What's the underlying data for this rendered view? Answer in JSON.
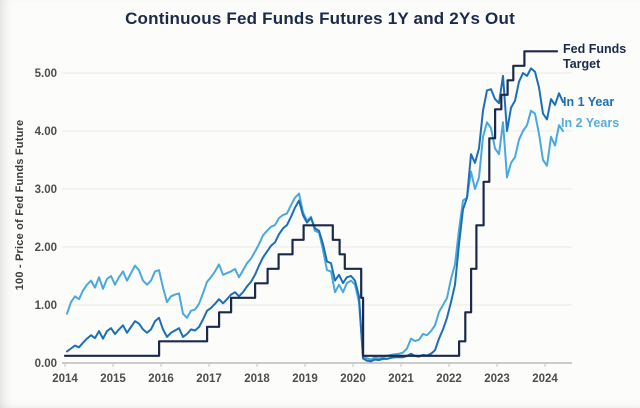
{
  "title": "Continuous Fed Funds Futures 1Y and 2Ys Out",
  "legend": {
    "target_label": "Fed Funds Target",
    "in_1_year_label": "In 1 Year",
    "in_2_years_label": "In 2 Years"
  },
  "colors": {
    "title_text": "#1b2a4a",
    "target_line": "#1b2a4a",
    "in_1_year_line": "#1d6fb5",
    "in_2_years_line": "#49a9dc",
    "gridline": "#eaeae6",
    "axis_line": "#9a9a9a",
    "tick_text": "#4d4d4d",
    "background": "#fcfcfa"
  },
  "chart_data": {
    "type": "line",
    "title": "Continuous Fed Funds Futures 1Y and 2Ys Out",
    "xlabel": "",
    "ylabel": "100 - Price of Fed Funds Future",
    "xlim": [
      2014,
      2024.6
    ],
    "ylim": [
      0,
      5.5
    ],
    "grid": "horizontal",
    "legend_position": "right",
    "x_ticks": [
      2014,
      2015,
      2016,
      2017,
      2018,
      2019,
      2020,
      2021,
      2022,
      2023,
      2024
    ],
    "y_ticks": [
      0,
      1,
      2,
      3,
      4,
      5
    ],
    "y_tick_labels": [
      "0.00",
      "1.00",
      "2.00",
      "3.00",
      "4.00",
      "5.00"
    ],
    "series": [
      {
        "name": "Fed Funds Target",
        "style": "step",
        "color": "#1b2a4a",
        "x_end": 2024.25,
        "points": [
          [
            2014.0,
            0.125
          ],
          [
            2015.96,
            0.375
          ],
          [
            2016.96,
            0.625
          ],
          [
            2017.21,
            0.875
          ],
          [
            2017.46,
            1.125
          ],
          [
            2017.96,
            1.375
          ],
          [
            2018.22,
            1.625
          ],
          [
            2018.45,
            1.875
          ],
          [
            2018.74,
            2.125
          ],
          [
            2018.97,
            2.375
          ],
          [
            2019.58,
            2.125
          ],
          [
            2019.72,
            1.875
          ],
          [
            2019.83,
            1.625
          ],
          [
            2020.17,
            1.125
          ],
          [
            2020.21,
            0.125
          ],
          [
            2022.21,
            0.375
          ],
          [
            2022.34,
            0.875
          ],
          [
            2022.46,
            1.625
          ],
          [
            2022.57,
            2.375
          ],
          [
            2022.72,
            3.125
          ],
          [
            2022.84,
            3.875
          ],
          [
            2022.96,
            4.375
          ],
          [
            2023.09,
            4.625
          ],
          [
            2023.22,
            4.875
          ],
          [
            2023.34,
            5.125
          ],
          [
            2023.57,
            5.375
          ]
        ]
      },
      {
        "name": "In 1 Year",
        "style": "line",
        "color": "#1d6fb5",
        "x_start": 2014.042,
        "x_step": 0.08333,
        "values": [
          0.2,
          0.25,
          0.3,
          0.27,
          0.35,
          0.42,
          0.48,
          0.43,
          0.55,
          0.42,
          0.55,
          0.6,
          0.5,
          0.58,
          0.65,
          0.52,
          0.62,
          0.72,
          0.68,
          0.58,
          0.52,
          0.58,
          0.72,
          0.78,
          0.58,
          0.45,
          0.52,
          0.56,
          0.6,
          0.45,
          0.5,
          0.58,
          0.56,
          0.62,
          0.75,
          0.9,
          0.95,
          1.02,
          1.1,
          1.03,
          1.1,
          1.18,
          1.22,
          1.15,
          1.22,
          1.32,
          1.4,
          1.52,
          1.68,
          1.82,
          1.92,
          2.02,
          2.08,
          2.22,
          2.32,
          2.38,
          2.52,
          2.68,
          2.8,
          2.55,
          2.42,
          2.5,
          2.32,
          2.28,
          2.05,
          1.75,
          1.72,
          1.42,
          1.52,
          1.38,
          1.48,
          1.5,
          1.42,
          1.15,
          0.08,
          0.04,
          0.03,
          0.06,
          0.05,
          0.07,
          0.07,
          0.09,
          0.1,
          0.1,
          0.1,
          0.12,
          0.16,
          0.12,
          0.11,
          0.14,
          0.13,
          0.16,
          0.22,
          0.42,
          0.58,
          0.78,
          1.05,
          1.35,
          2.05,
          2.65,
          2.85,
          3.6,
          3.45,
          3.7,
          4.35,
          4.7,
          4.72,
          4.55,
          4.48,
          4.95,
          4.0,
          4.4,
          4.52,
          4.85,
          5.0,
          4.95,
          5.08,
          5.02,
          4.75,
          4.3,
          4.2,
          4.55,
          4.45,
          4.65,
          4.5
        ]
      },
      {
        "name": "In 2 Years",
        "style": "line",
        "color": "#49a9dc",
        "x_start": 2014.042,
        "x_step": 0.08333,
        "values": [
          0.85,
          1.05,
          1.15,
          1.1,
          1.25,
          1.35,
          1.42,
          1.3,
          1.48,
          1.28,
          1.45,
          1.5,
          1.35,
          1.48,
          1.58,
          1.42,
          1.55,
          1.68,
          1.6,
          1.42,
          1.35,
          1.42,
          1.58,
          1.6,
          1.3,
          1.05,
          1.15,
          1.18,
          1.2,
          0.85,
          0.78,
          0.9,
          0.92,
          1.02,
          1.2,
          1.4,
          1.48,
          1.58,
          1.7,
          1.52,
          1.55,
          1.58,
          1.62,
          1.48,
          1.6,
          1.72,
          1.8,
          1.92,
          2.05,
          2.2,
          2.28,
          2.35,
          2.38,
          2.5,
          2.55,
          2.58,
          2.72,
          2.85,
          2.92,
          2.6,
          2.45,
          2.52,
          2.28,
          2.25,
          1.95,
          1.6,
          1.58,
          1.22,
          1.35,
          1.22,
          1.38,
          1.42,
          1.35,
          1.05,
          0.12,
          0.08,
          0.06,
          0.1,
          0.08,
          0.1,
          0.12,
          0.14,
          0.15,
          0.16,
          0.18,
          0.25,
          0.42,
          0.38,
          0.4,
          0.5,
          0.48,
          0.55,
          0.65,
          0.88,
          1.0,
          1.12,
          1.45,
          1.7,
          2.3,
          2.8,
          2.85,
          3.3,
          3.0,
          3.2,
          3.9,
          4.15,
          4.05,
          3.7,
          3.6,
          4.15,
          3.2,
          3.45,
          3.55,
          3.85,
          4.0,
          4.1,
          4.35,
          4.3,
          3.95,
          3.5,
          3.4,
          3.9,
          3.75,
          4.1,
          4.0
        ]
      }
    ]
  }
}
